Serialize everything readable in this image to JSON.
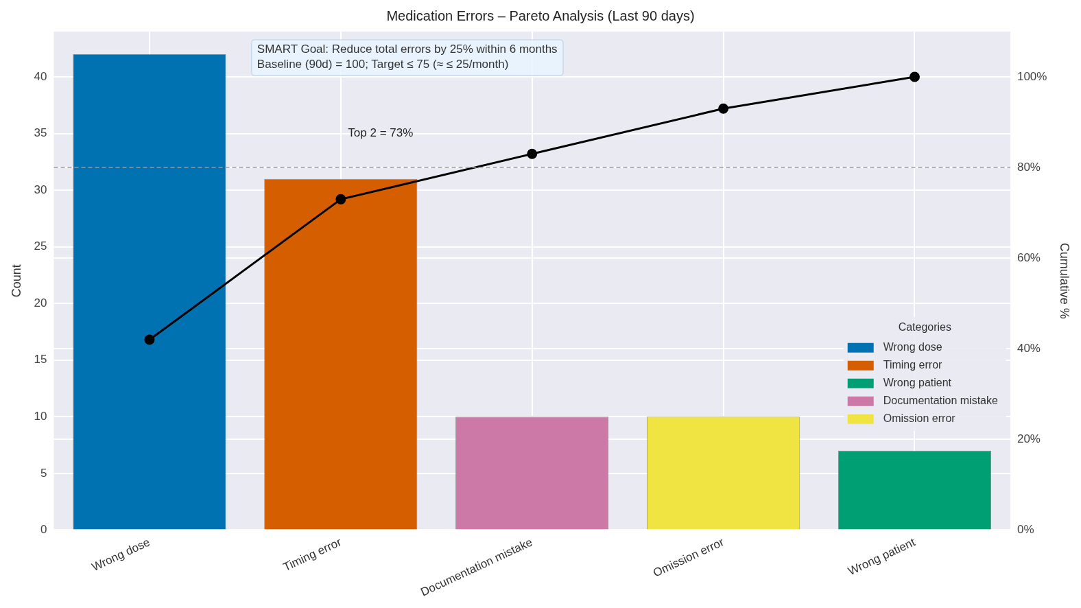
{
  "chart_data": {
    "type": "bar",
    "title": "Medication Errors – Pareto Analysis (Last 90 days)",
    "ylabel": "Count",
    "y2label": "Cumulative %",
    "legend_title": "Categories",
    "categories": [
      "Wrong dose",
      "Timing error",
      "Documentation mistake",
      "Omission error",
      "Wrong patient"
    ],
    "series": [
      {
        "name": "Wrong dose",
        "color": "#0072b2",
        "values": [
          42,
          null,
          null,
          null,
          null
        ]
      },
      {
        "name": "Timing error",
        "color": "#d55e00",
        "values": [
          null,
          31,
          null,
          null,
          null
        ]
      },
      {
        "name": "Wrong patient",
        "color": "#009e73",
        "values": [
          null,
          null,
          null,
          null,
          7
        ]
      },
      {
        "name": "Documentation mistake",
        "color": "#cc79a7",
        "values": [
          null,
          null,
          10,
          null,
          null
        ]
      },
      {
        "name": "Omission error",
        "color": "#f0e442",
        "values": [
          null,
          null,
          null,
          10,
          null
        ]
      },
      {
        "type": "line",
        "axis": "y2",
        "color": "#000000",
        "values": [
          42,
          73,
          83,
          93,
          100
        ]
      }
    ],
    "ylim": [
      0,
      44
    ],
    "yticks": [
      0,
      5,
      10,
      15,
      20,
      25,
      30,
      35,
      40
    ],
    "y2lim": [
      0,
      110
    ],
    "y2ticks": [
      {
        "value": 0,
        "label": "0%"
      },
      {
        "value": 20,
        "label": "20%"
      },
      {
        "value": 40,
        "label": "40%"
      },
      {
        "value": 60,
        "label": "60%"
      },
      {
        "value": 80,
        "label": "80%"
      },
      {
        "value": 100,
        "label": "100%"
      }
    ],
    "ref_lines": [
      {
        "axis": "y2",
        "value": 80,
        "color": "#999999",
        "line_style": "dashed"
      }
    ],
    "annotations": [
      "SMART Goal: Reduce total errors by 25% within 6 months",
      "Baseline (90d) = 100; Target ≤ 75 (≈ ≤ 25/month)",
      "Top 2 = 73%"
    ],
    "grid": true,
    "legend": "bottom right",
    "marker": "circle",
    "line_style": "solid"
  }
}
